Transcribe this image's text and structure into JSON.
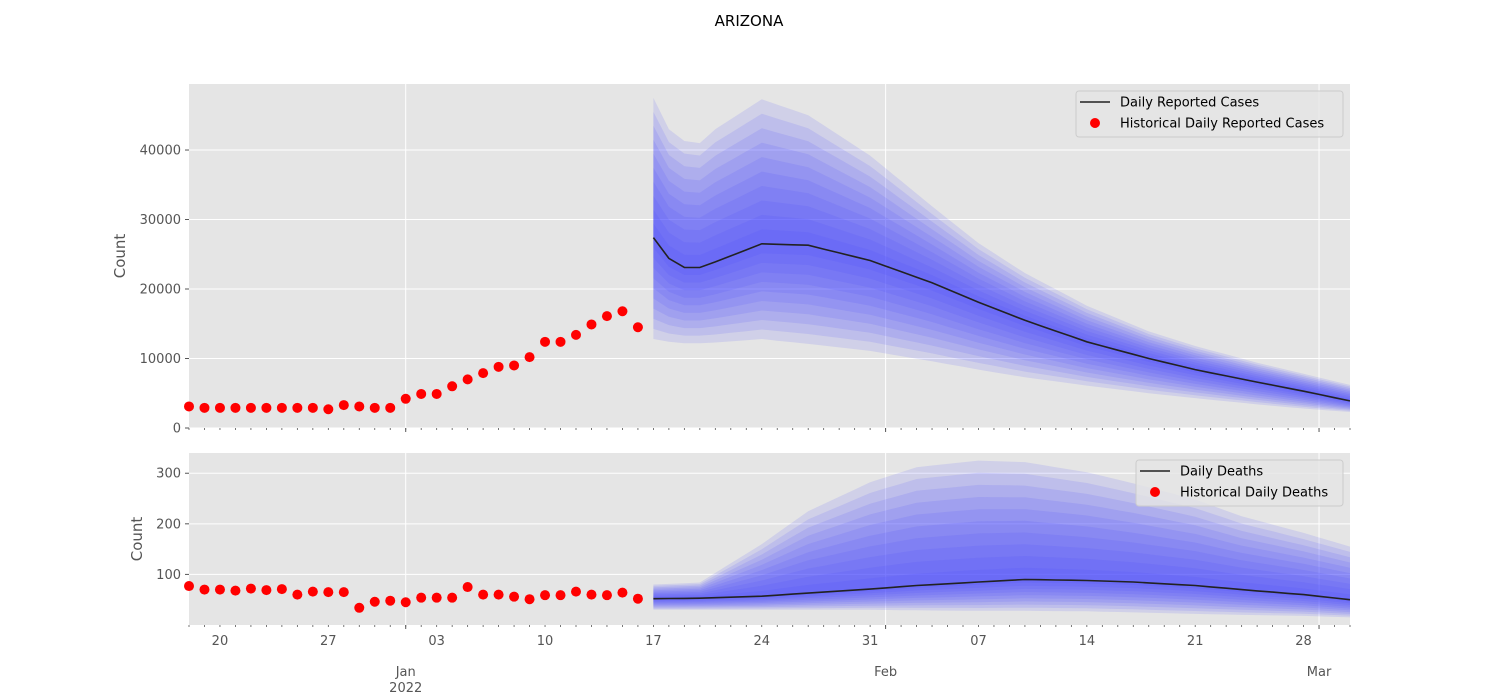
{
  "figure": {
    "title": "ARIZONA"
  },
  "colors": {
    "axes_bg": "#e5e5e5",
    "grid": "#ffffff",
    "band": "#4646ff",
    "median_line": "#222222",
    "historical": "#ff0000",
    "tick_text": "#555555"
  },
  "chart_data": [
    {
      "type": "line",
      "ylabel": "Count",
      "ylim": [
        0,
        49500
      ],
      "yticks": [
        0,
        10000,
        20000,
        30000,
        40000
      ],
      "x_range": [
        "2021-12-18",
        "2022-03-03"
      ],
      "grid": true,
      "legend": {
        "placement": "top-right",
        "entries": [
          {
            "label": "Daily Reported Cases",
            "kind": "line"
          },
          {
            "label": "Historical Daily Reported Cases",
            "kind": "marker"
          }
        ]
      },
      "historical": {
        "name": "Historical Daily Reported Cases",
        "start": "2021-12-18",
        "values": [
          3100,
          2900,
          2900,
          2900,
          2900,
          2900,
          2900,
          2900,
          2900,
          2700,
          3300,
          3100,
          2900,
          2900,
          4200,
          4900,
          4900,
          6000,
          7000,
          7900,
          8800,
          9000,
          10200,
          12400,
          12400,
          13400,
          14900,
          16100,
          16800,
          14500
        ]
      },
      "forecast": {
        "name": "Daily Reported Cases",
        "x": [
          "2022-01-17",
          "2022-01-18",
          "2022-01-19",
          "2022-01-20",
          "2022-01-21",
          "2022-01-24",
          "2022-01-27",
          "2022-01-31",
          "2022-02-04",
          "2022-02-07",
          "2022-02-10",
          "2022-02-14",
          "2022-02-18",
          "2022-02-21",
          "2022-02-25",
          "2022-02-28",
          "2022-03-03"
        ],
        "median": [
          27400,
          24400,
          23100,
          23100,
          23900,
          26500,
          26300,
          24100,
          20900,
          18100,
          15500,
          12400,
          10000,
          8400,
          6600,
          5300,
          3900
        ],
        "upper": [
          47500,
          43000,
          41300,
          41000,
          43000,
          47300,
          45000,
          39200,
          31900,
          26600,
          22300,
          17600,
          13900,
          11800,
          9400,
          7800,
          6200
        ],
        "lower": [
          12800,
          12400,
          12200,
          12200,
          12300,
          12800,
          12100,
          11100,
          9600,
          8400,
          7300,
          6100,
          5000,
          4300,
          3400,
          2800,
          2300
        ]
      }
    },
    {
      "type": "line",
      "ylabel": "Count",
      "ylim": [
        0,
        340
      ],
      "yticks": [
        100,
        200,
        300
      ],
      "x_range": [
        "2021-12-18",
        "2022-03-03"
      ],
      "grid": true,
      "legend": {
        "placement": "top-right",
        "entries": [
          {
            "label": "Daily Deaths",
            "kind": "line"
          },
          {
            "label": "Historical Daily Deaths",
            "kind": "marker"
          }
        ]
      },
      "historical": {
        "name": "Historical Daily Deaths",
        "start": "2021-12-18",
        "values": [
          77,
          70,
          70,
          68,
          72,
          69,
          71,
          60,
          66,
          65,
          65,
          34,
          46,
          48,
          45,
          54,
          54,
          54,
          75,
          60,
          60,
          56,
          51,
          59,
          59,
          66,
          60,
          59,
          64,
          52
        ]
      },
      "forecast": {
        "name": "Daily Deaths",
        "x": [
          "2022-01-17",
          "2022-01-20",
          "2022-01-24",
          "2022-01-27",
          "2022-01-31",
          "2022-02-03",
          "2022-02-07",
          "2022-02-10",
          "2022-02-14",
          "2022-02-17",
          "2022-02-21",
          "2022-02-24",
          "2022-02-28",
          "2022-03-03"
        ],
        "median": [
          52,
          53,
          57,
          63,
          71,
          78,
          85,
          90,
          88,
          85,
          78,
          70,
          60,
          50
        ],
        "upper": [
          80,
          84,
          160,
          225,
          282,
          312,
          325,
          322,
          302,
          280,
          248,
          215,
          182,
          155
        ],
        "lower": [
          30,
          30,
          30,
          30,
          30,
          29,
          28,
          28,
          27,
          25,
          22,
          20,
          18,
          15
        ]
      }
    }
  ],
  "x_axis": {
    "tick_labels": [
      {
        "date": "2021-12-20",
        "label": "20"
      },
      {
        "date": "2021-12-27",
        "label": "27"
      },
      {
        "date": "2022-01-03",
        "label": "03"
      },
      {
        "date": "2022-01-10",
        "label": "10"
      },
      {
        "date": "2022-01-17",
        "label": "17"
      },
      {
        "date": "2022-01-24",
        "label": "24"
      },
      {
        "date": "2022-01-31",
        "label": "31"
      },
      {
        "date": "2022-02-07",
        "label": "07"
      },
      {
        "date": "2022-02-14",
        "label": "14"
      },
      {
        "date": "2022-02-21",
        "label": "21"
      },
      {
        "date": "2022-02-28",
        "label": "28"
      }
    ],
    "month_labels": [
      {
        "date": "2022-01-01",
        "label": "Jan",
        "sublabel": "2022"
      },
      {
        "date": "2022-02-01",
        "label": "Feb",
        "sublabel": ""
      },
      {
        "date": "2022-03-01",
        "label": "Mar",
        "sublabel": ""
      }
    ]
  }
}
